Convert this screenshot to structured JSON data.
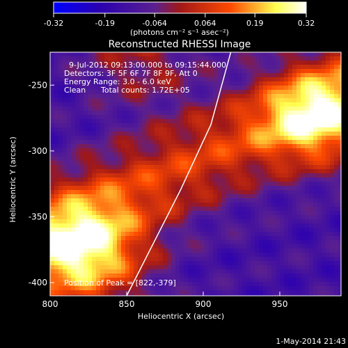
{
  "chart_data": {
    "type": "heatmap",
    "title": "Reconstructed RHESSI Image",
    "xlabel": "Heliocentric X (arcsec)",
    "ylabel": "Heliocentric Y (arcsec)",
    "xlim": [
      800,
      990
    ],
    "ylim": [
      -410,
      -225
    ],
    "x_ticks": [
      "800",
      "850",
      "900",
      "950"
    ],
    "x_tick_values": [
      800,
      850,
      900,
      950
    ],
    "y_ticks": [
      "-250",
      "-300",
      "-350",
      "-400"
    ],
    "y_tick_values": [
      -250,
      -300,
      -350,
      -400
    ],
    "colorbar": {
      "tick_labels": [
        "-0.32",
        "-0.19",
        "-0.064",
        "0.064",
        "0.19",
        "0.32"
      ],
      "tick_values": [
        -0.32,
        -0.19,
        -0.064,
        0.064,
        0.19,
        0.32
      ],
      "range": [
        -0.32,
        0.32
      ],
      "units_label": "(photons cm⁻² s⁻¹ asec⁻²)",
      "colors": [
        "#0000ff",
        "#2a00b0",
        "#5a2090",
        "#a01818",
        "#ff4a00",
        "#ffff50",
        "#ffffff"
      ]
    },
    "annotations": {
      "time_range": "9-Jul-2012 09:13:00.000 to 09:15:44.000",
      "detectors": "Detectors: 3F 5F 6F 7F 8F 9F, Att 0",
      "energy": "Energy Range: 3.0 - 6.0 keV",
      "method": "Clean",
      "counts": "Total counts: 1.72E+05",
      "peak": "Position of Peak = [822,-379]"
    },
    "peak": [
      822,
      -379
    ],
    "limb_line": [
      [
        850,
        -410
      ],
      [
        885,
        -330
      ],
      [
        905,
        -280
      ],
      [
        918,
        -225
      ]
    ],
    "footer": "1-May-2014 21:43"
  }
}
